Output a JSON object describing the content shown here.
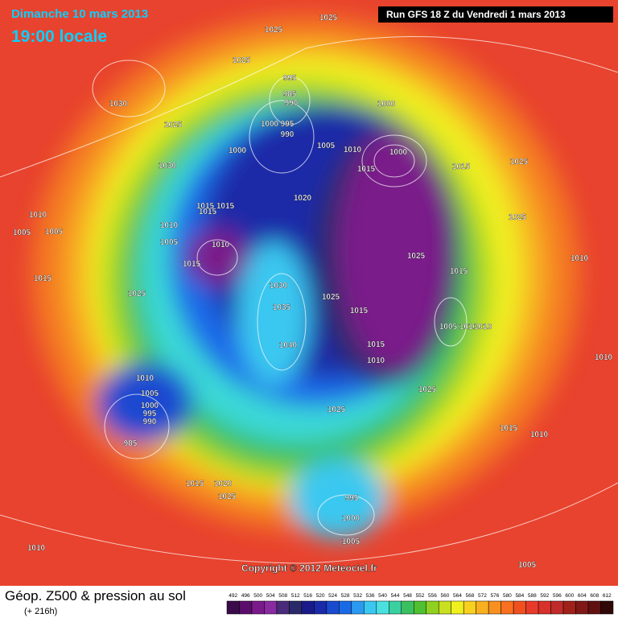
{
  "header": {
    "date": "Dimanche 10 mars 2013",
    "time": "19:00 locale",
    "run": "Run GFS 18 Z du Vendredi 1 mars 2013"
  },
  "copyright": "Copyright © 2012 Meteociel.fr",
  "legend": {
    "title": "Géop. Z500 & pression au sol",
    "lead": "(+ 216h)",
    "scale": [
      492,
      496,
      500,
      504,
      508,
      512,
      516,
      520,
      524,
      528,
      532,
      536,
      540,
      544,
      548,
      552,
      556,
      560,
      564,
      568,
      572,
      576,
      580,
      584,
      588,
      592,
      596,
      600,
      604,
      608,
      612
    ],
    "colors": [
      "#3a0a4a",
      "#5a0d6a",
      "#7a1a8a",
      "#8a2aa0",
      "#4a2a7a",
      "#2a2a6a",
      "#1a1a8a",
      "#1a2aa8",
      "#1a4ad0",
      "#1a6ae8",
      "#2a9af0",
      "#3ac8f0",
      "#4ae0e0",
      "#3ad0a0",
      "#3ac060",
      "#50c030",
      "#90d020",
      "#c8e020",
      "#f0f020",
      "#f8d020",
      "#f8b020",
      "#f89020",
      "#f87020",
      "#f05020",
      "#e83a2a",
      "#d8302a",
      "#c02a2a",
      "#a0201a",
      "#801818",
      "#601010",
      "#300808"
    ]
  },
  "pressure_labels": [
    1025,
    1025,
    1025,
    995,
    985,
    990,
    1030,
    1000,
    1000,
    995,
    990,
    1025,
    1005,
    1010,
    1000,
    1000,
    1015,
    1025,
    1030,
    1015,
    1020,
    1015,
    1015,
    1015,
    1010,
    1005,
    1005,
    1010,
    1010,
    1005,
    1025,
    1025,
    1010,
    1015,
    1015,
    1015,
    1030,
    1025,
    1025,
    1035,
    1015,
    1005,
    1010,
    1010,
    1040,
    1015,
    1010,
    1010,
    1010,
    1025,
    1005,
    1000,
    995,
    990,
    1025,
    1015,
    1010,
    985,
    1015,
    1020,
    1025,
    995,
    1000,
    1005,
    1010,
    1005
  ]
}
